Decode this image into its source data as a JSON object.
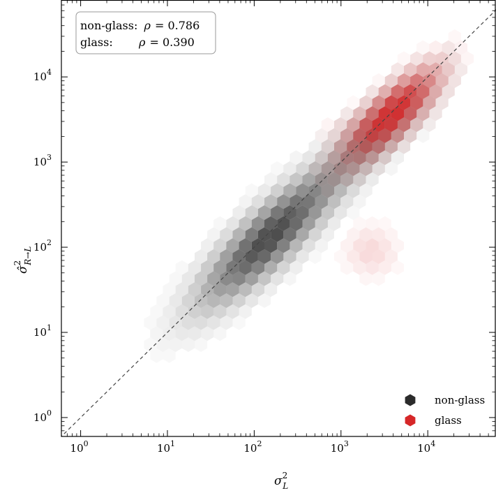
{
  "chart_data": {
    "type": "scatter",
    "subtype": "hexbin-density",
    "scale": {
      "x": "log",
      "y": "log"
    },
    "xlim": [
      0.6,
      60000
    ],
    "ylim": [
      0.6,
      80000
    ],
    "xlabel": "σ²_L",
    "xlabel_parts": {
      "base": "σ",
      "sup": "2",
      "sub": "L"
    },
    "ylabel": "σ̂²_R→L",
    "ylabel_parts": {
      "base": "σ̂",
      "sup": "2",
      "sub": "R→L"
    },
    "x_ticks": [
      {
        "value": 1,
        "exp": "0"
      },
      {
        "value": 10,
        "exp": "1"
      },
      {
        "value": 100,
        "exp": "2"
      },
      {
        "value": 1000,
        "exp": "3"
      },
      {
        "value": 10000,
        "exp": "4"
      }
    ],
    "y_ticks": [
      {
        "value": 1,
        "exp": "0"
      },
      {
        "value": 10,
        "exp": "1"
      },
      {
        "value": 100,
        "exp": "2"
      },
      {
        "value": 1000,
        "exp": "3"
      },
      {
        "value": 10000,
        "exp": "4"
      }
    ],
    "tick_base": "10",
    "reference_line": {
      "style": "dashed",
      "slope": 1,
      "label": ""
    },
    "annotation_box": {
      "lines": [
        {
          "group": "non-glass:",
          "symbol": "ρ",
          "value": "= 0.786"
        },
        {
          "group": "glass:",
          "symbol": "ρ",
          "value": "= 0.390"
        }
      ]
    },
    "legend": {
      "placement": "bottom-right"
    },
    "series": [
      {
        "name": "non-glass",
        "color": "#2b2b2b",
        "clusters": [
          {
            "center": [
              150,
              130
            ],
            "log_spread": [
              0.55,
              0.55
            ],
            "correlation": 0.85,
            "peak": 0.85
          },
          {
            "center": [
              3000,
              2500
            ],
            "log_spread": [
              0.4,
              0.4
            ],
            "correlation": 0.8,
            "peak": 0.5
          }
        ]
      },
      {
        "name": "glass",
        "color": "#d62728",
        "clusters": [
          {
            "center": [
              4000,
              3800
            ],
            "log_spread": [
              0.35,
              0.35
            ],
            "correlation": 0.8,
            "peak": 0.95
          },
          {
            "center": [
              2200,
              90
            ],
            "log_spread": [
              0.2,
              0.2
            ],
            "correlation": 0.0,
            "peak": 0.18
          },
          {
            "center": [
              1200,
              2600
            ],
            "log_spread": [
              0.3,
              0.12
            ],
            "correlation": 0.0,
            "peak": 0.06
          }
        ]
      }
    ],
    "grid": false
  }
}
